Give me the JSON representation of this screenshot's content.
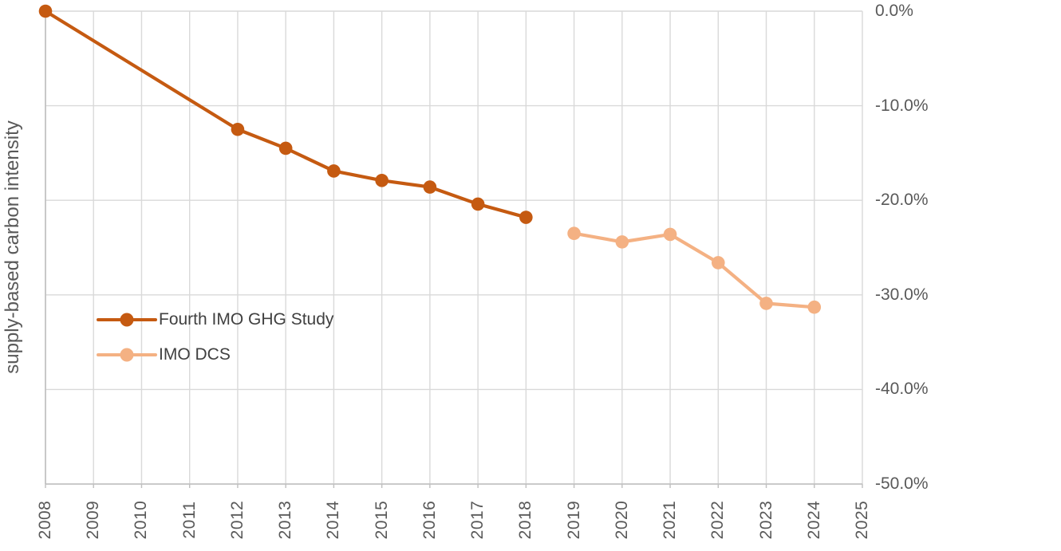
{
  "chart_data": {
    "type": "line",
    "title": "",
    "xlabel": "",
    "ylabel": "supply-based carbon intensity",
    "x_range": [
      2008,
      2025
    ],
    "x_ticks": [
      2008,
      2009,
      2010,
      2011,
      2012,
      2013,
      2014,
      2015,
      2016,
      2017,
      2018,
      2019,
      2020,
      2021,
      2022,
      2023,
      2024,
      2025
    ],
    "ylim": [
      -50,
      0
    ],
    "y_ticks": [
      {
        "value": 0,
        "label": "0.0%"
      },
      {
        "value": -10,
        "label": "-10.0%"
      },
      {
        "value": -20,
        "label": "-20.0%"
      },
      {
        "value": -30,
        "label": "-30.0%"
      },
      {
        "value": -40,
        "label": "-40.0%"
      },
      {
        "value": -50,
        "label": "-50.0%"
      }
    ],
    "grid": true,
    "legend_position": "inside-left",
    "series": [
      {
        "name": "Fourth IMO GHG Study",
        "color": "#c55a11",
        "points": [
          {
            "x": 2008,
            "y": 0.0
          },
          {
            "x": 2012,
            "y": -12.5
          },
          {
            "x": 2013,
            "y": -14.5
          },
          {
            "x": 2014,
            "y": -16.9
          },
          {
            "x": 2015,
            "y": -17.9
          },
          {
            "x": 2016,
            "y": -18.6
          },
          {
            "x": 2017,
            "y": -20.4
          },
          {
            "x": 2018,
            "y": -21.8
          }
        ]
      },
      {
        "name": "IMO DCS",
        "color": "#f4b183",
        "points": [
          {
            "x": 2019,
            "y": -23.5
          },
          {
            "x": 2020,
            "y": -24.4
          },
          {
            "x": 2021,
            "y": -23.6
          },
          {
            "x": 2022,
            "y": -26.6
          },
          {
            "x": 2023,
            "y": -30.9
          },
          {
            "x": 2024,
            "y": -31.3
          }
        ]
      }
    ],
    "colors": {
      "gridline": "#d9d9d9",
      "axis_line": "#bfbfbf",
      "tick_text": "#595959",
      "axis_title_text": "#595959",
      "legend_text": "#404040",
      "background": "#ffffff"
    }
  }
}
